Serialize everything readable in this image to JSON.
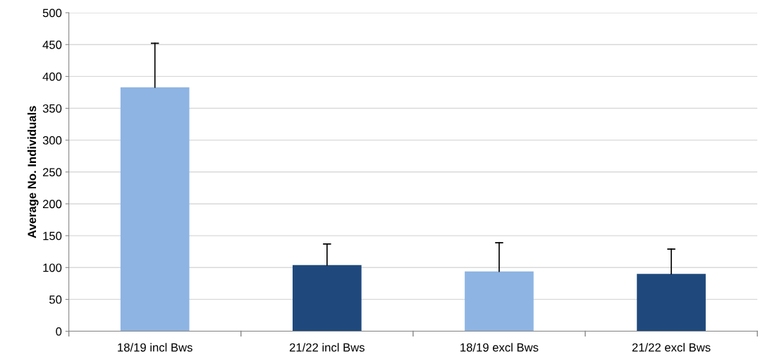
{
  "chart_data": {
    "type": "bar",
    "ylabel": "Average No. Individuals",
    "categories": [
      "18/19 incl Bws",
      "21/22 incl Bws",
      "18/19 excl Bws",
      "21/22 excl Bws"
    ],
    "values": [
      383,
      104,
      94,
      90
    ],
    "colors": [
      "#8eb4e3",
      "#1f497d",
      "#8eb4e3",
      "#1f497d"
    ],
    "errors": [
      [
        383,
        452
      ],
      [
        104,
        137
      ],
      [
        94,
        139
      ],
      [
        90,
        129
      ]
    ],
    "ylim": [
      0,
      500
    ],
    "yticks": [
      0,
      50,
      100,
      150,
      200,
      250,
      300,
      350,
      400,
      450,
      500
    ],
    "grid": "y"
  }
}
